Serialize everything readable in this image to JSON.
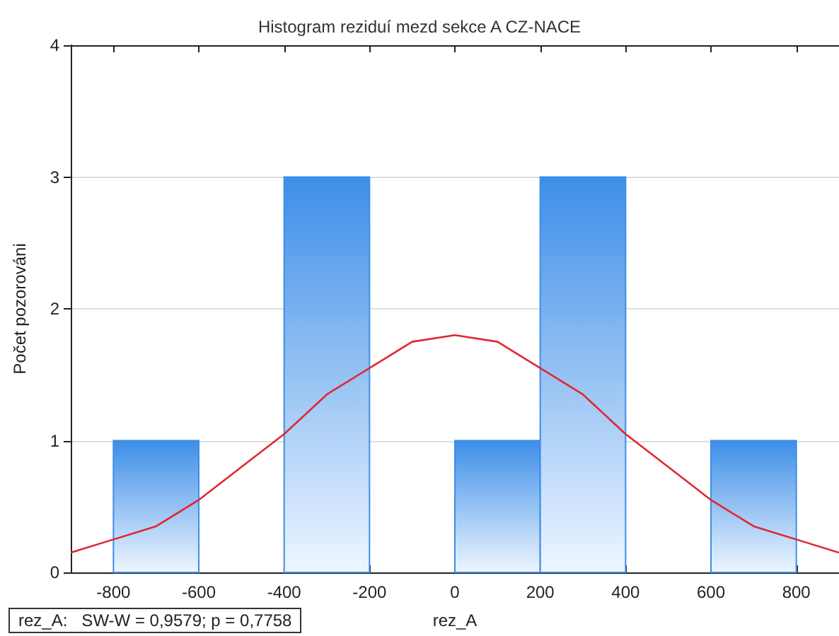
{
  "chart_data": {
    "type": "histogram",
    "title": "Histogram reziduí mezd sekce A CZ-NACE",
    "xlabel": "rez_A",
    "ylabel": "Počet pozorováni",
    "bins": [
      -800,
      -600,
      -400,
      -200,
      0,
      200,
      400,
      600,
      800
    ],
    "values": [
      1,
      0,
      3,
      0,
      1,
      3,
      0,
      1
    ],
    "color": "#3d8ee8",
    "series": [
      {
        "type": "line",
        "color": "#e02830",
        "x": [
          -900,
          -800,
          -700,
          -600,
          -500,
          -400,
          -300,
          -200,
          -100,
          0,
          100,
          200,
          300,
          400,
          500,
          600,
          700,
          800,
          900
        ],
        "values": [
          0.15,
          0.25,
          0.35,
          0.55,
          0.8,
          1.05,
          1.35,
          1.55,
          1.75,
          1.8,
          1.75,
          1.55,
          1.35,
          1.05,
          0.8,
          0.55,
          0.35,
          0.25,
          0.15
        ]
      }
    ],
    "xlim": [
      -900,
      900
    ],
    "xticks": [
      -800,
      -600,
      -400,
      -200,
      0,
      200,
      400,
      600,
      800
    ],
    "ylim": [
      0,
      4
    ],
    "yticks": [
      0,
      1,
      2,
      3,
      4
    ],
    "grid": "y",
    "legend": false,
    "annotations": [
      "rez_A:   SW-W = 0,9579; p = 0,7758"
    ]
  }
}
